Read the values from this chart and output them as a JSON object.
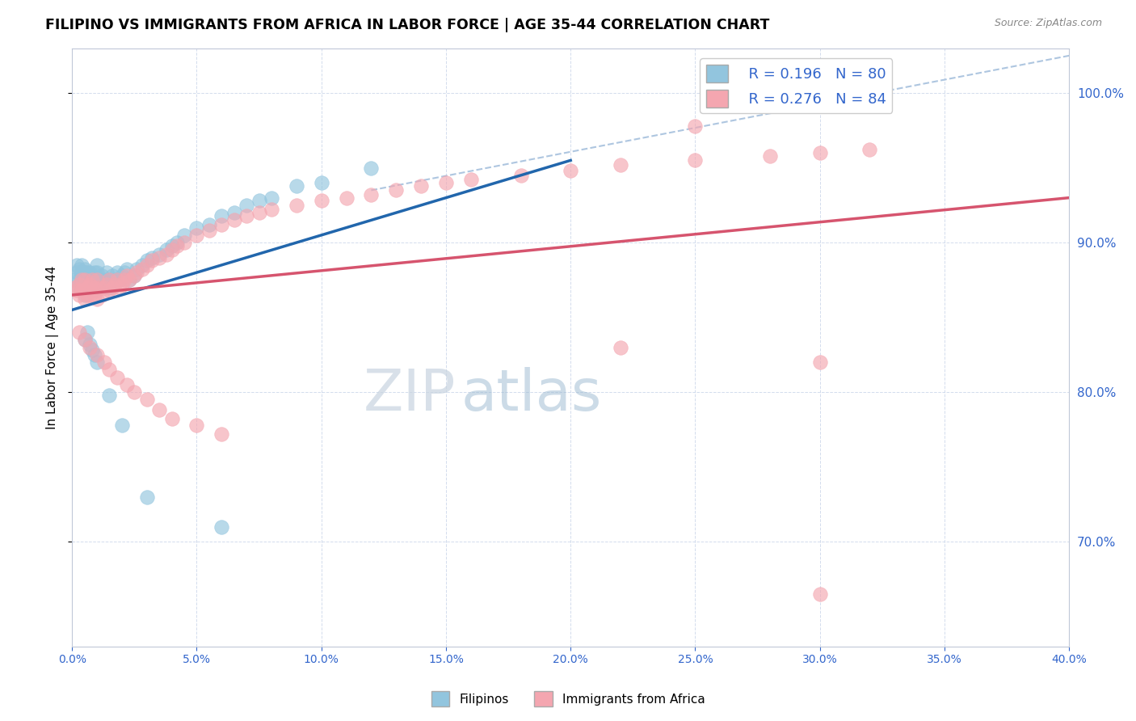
{
  "title": "FILIPINO VS IMMIGRANTS FROM AFRICA IN LABOR FORCE | AGE 35-44 CORRELATION CHART",
  "source": "Source: ZipAtlas.com",
  "ylabel": "In Labor Force | Age 35-44",
  "right_yticks": [
    1.0,
    0.9,
    0.8,
    0.7
  ],
  "right_ytick_labels": [
    "100.0%",
    "90.0%",
    "80.0%",
    "70.0%"
  ],
  "xlim": [
    0.0,
    0.4
  ],
  "ylim": [
    0.63,
    1.03
  ],
  "legend_label1": "Filipinos",
  "legend_label2": "Immigrants from Africa",
  "blue_color": "#92c5de",
  "pink_color": "#f4a6b0",
  "blue_line_color": "#2166ac",
  "pink_line_color": "#d6546e",
  "ref_line_color": "#aec6e0",
  "blue_r": 0.196,
  "blue_n": 80,
  "pink_r": 0.276,
  "pink_n": 84,
  "blue_line_x0": 0.0,
  "blue_line_y0": 0.855,
  "blue_line_x1": 0.2,
  "blue_line_y1": 0.955,
  "pink_line_x0": 0.0,
  "pink_line_y0": 0.865,
  "pink_line_x1": 0.4,
  "pink_line_y1": 0.93,
  "ref_line_x0": 0.12,
  "ref_line_y0": 0.935,
  "ref_line_x1": 0.4,
  "ref_line_y1": 1.025,
  "watermark_zip": "ZIP",
  "watermark_atlas": "atlas",
  "blue_scatter_x": [
    0.001,
    0.002,
    0.002,
    0.003,
    0.003,
    0.003,
    0.004,
    0.004,
    0.004,
    0.004,
    0.005,
    0.005,
    0.005,
    0.005,
    0.005,
    0.005,
    0.005,
    0.005,
    0.005,
    0.006,
    0.006,
    0.006,
    0.007,
    0.007,
    0.007,
    0.008,
    0.008,
    0.008,
    0.009,
    0.009,
    0.01,
    0.01,
    0.01,
    0.01,
    0.011,
    0.011,
    0.012,
    0.012,
    0.013,
    0.014,
    0.015,
    0.015,
    0.016,
    0.017,
    0.018,
    0.019,
    0.02,
    0.021,
    0.022,
    0.023,
    0.025,
    0.026,
    0.028,
    0.03,
    0.032,
    0.035,
    0.038,
    0.04,
    0.042,
    0.045,
    0.05,
    0.055,
    0.06,
    0.065,
    0.07,
    0.075,
    0.08,
    0.09,
    0.1,
    0.12,
    0.005,
    0.006,
    0.007,
    0.008,
    0.009,
    0.01,
    0.015,
    0.02,
    0.03,
    0.06
  ],
  "blue_scatter_y": [
    0.875,
    0.88,
    0.885,
    0.87,
    0.875,
    0.882,
    0.875,
    0.88,
    0.885,
    0.872,
    0.865,
    0.87,
    0.875,
    0.88,
    0.882,
    0.875,
    0.872,
    0.868,
    0.878,
    0.872,
    0.875,
    0.88,
    0.87,
    0.875,
    0.88,
    0.872,
    0.875,
    0.868,
    0.875,
    0.88,
    0.87,
    0.875,
    0.88,
    0.885,
    0.875,
    0.87,
    0.872,
    0.878,
    0.875,
    0.88,
    0.875,
    0.87,
    0.878,
    0.875,
    0.88,
    0.875,
    0.878,
    0.88,
    0.882,
    0.875,
    0.878,
    0.882,
    0.885,
    0.888,
    0.89,
    0.892,
    0.895,
    0.898,
    0.9,
    0.905,
    0.91,
    0.912,
    0.918,
    0.92,
    0.925,
    0.928,
    0.93,
    0.938,
    0.94,
    0.95,
    0.835,
    0.84,
    0.832,
    0.828,
    0.825,
    0.82,
    0.798,
    0.778,
    0.73,
    0.71
  ],
  "pink_scatter_x": [
    0.001,
    0.002,
    0.003,
    0.003,
    0.004,
    0.004,
    0.005,
    0.005,
    0.005,
    0.006,
    0.006,
    0.007,
    0.007,
    0.008,
    0.008,
    0.009,
    0.009,
    0.01,
    0.01,
    0.01,
    0.011,
    0.012,
    0.013,
    0.014,
    0.015,
    0.015,
    0.016,
    0.017,
    0.018,
    0.019,
    0.02,
    0.021,
    0.022,
    0.023,
    0.025,
    0.026,
    0.028,
    0.03,
    0.032,
    0.035,
    0.038,
    0.04,
    0.042,
    0.045,
    0.05,
    0.055,
    0.06,
    0.065,
    0.07,
    0.075,
    0.08,
    0.09,
    0.1,
    0.11,
    0.12,
    0.13,
    0.14,
    0.15,
    0.16,
    0.18,
    0.2,
    0.22,
    0.25,
    0.28,
    0.3,
    0.32,
    0.003,
    0.005,
    0.007,
    0.01,
    0.013,
    0.015,
    0.018,
    0.022,
    0.025,
    0.03,
    0.035,
    0.04,
    0.05,
    0.06,
    0.3,
    0.22,
    0.25,
    0.3
  ],
  "pink_scatter_y": [
    0.87,
    0.868,
    0.865,
    0.872,
    0.868,
    0.875,
    0.862,
    0.868,
    0.875,
    0.865,
    0.87,
    0.865,
    0.872,
    0.868,
    0.875,
    0.865,
    0.87,
    0.868,
    0.862,
    0.875,
    0.87,
    0.865,
    0.87,
    0.872,
    0.868,
    0.875,
    0.87,
    0.872,
    0.875,
    0.87,
    0.872,
    0.875,
    0.878,
    0.875,
    0.878,
    0.88,
    0.882,
    0.885,
    0.888,
    0.89,
    0.892,
    0.895,
    0.898,
    0.9,
    0.905,
    0.908,
    0.912,
    0.915,
    0.918,
    0.92,
    0.922,
    0.925,
    0.928,
    0.93,
    0.932,
    0.935,
    0.938,
    0.94,
    0.942,
    0.945,
    0.948,
    0.952,
    0.955,
    0.958,
    0.96,
    0.962,
    0.84,
    0.835,
    0.83,
    0.825,
    0.82,
    0.815,
    0.81,
    0.805,
    0.8,
    0.795,
    0.788,
    0.782,
    0.778,
    0.772,
    0.82,
    0.83,
    0.978,
    0.665
  ]
}
